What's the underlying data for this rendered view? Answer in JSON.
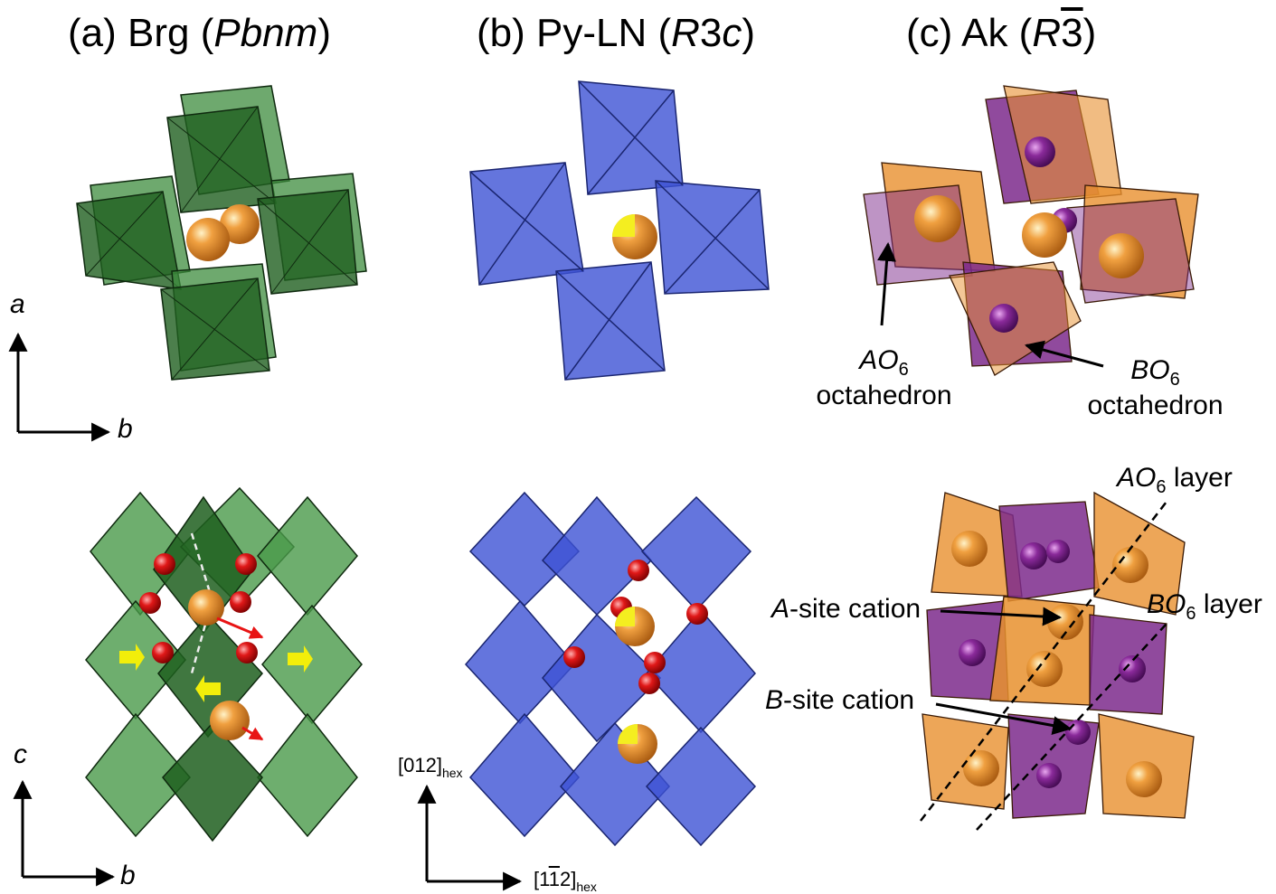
{
  "titles": {
    "a": {
      "prefix": "(a) Brg (",
      "group": "Pbnm",
      "suffix": ")"
    },
    "b": {
      "prefix": "(b) Py-LN (",
      "group_italic": "R",
      "group_rest": "3",
      "group_italic2": "c",
      "suffix": ")"
    },
    "c": {
      "prefix": "(c) Ak (",
      "group_italic": "R",
      "group_bar": "3",
      "suffix": ")"
    }
  },
  "axes": {
    "top_left": {
      "vertical": "a",
      "horizontal": "b"
    },
    "bottom_left": {
      "vertical": "c",
      "horizontal": "b"
    },
    "bottom_middle": {
      "vertical_main": "[012]",
      "vertical_sub": "hex",
      "horizontal_pre": "[1",
      "horizontal_bar": "1",
      "horizontal_post": "2]",
      "horizontal_sub": "hex"
    }
  },
  "annotations": {
    "ao6_label": "AO",
    "ao6_sub": "6",
    "ao6_word": "octahedron",
    "bo6_label": "BO",
    "bo6_sub": "6",
    "bo6_word": "octahedron",
    "ao6_layer_pre": "AO",
    "ao6_layer_sub": "6",
    "ao6_layer_post": " layer",
    "bo6_layer_pre": "BO",
    "bo6_layer_sub": "6",
    "bo6_layer_post": " layer",
    "a_site_italic": "A",
    "a_site_rest": "-site cation",
    "b_site_italic": "B",
    "b_site_rest": "-site cation"
  },
  "colors": {
    "green": "#2f7a2f",
    "blue": "#3d52d5",
    "orange": "#e8902e",
    "purple": "#7d2a8c",
    "oxygen": "#e0141e",
    "yellow_arrow": "#f2ee0a",
    "red_arrow": "#e81414"
  }
}
